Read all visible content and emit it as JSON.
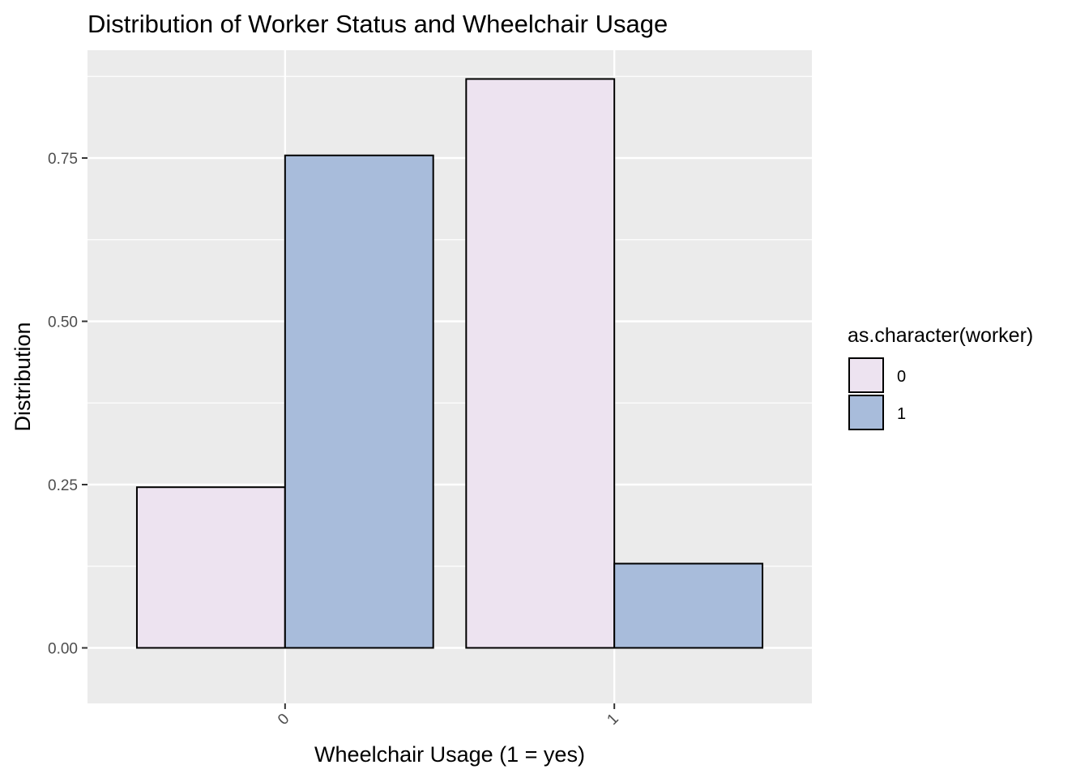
{
  "chart_data": {
    "type": "bar",
    "title": "Distribution of Worker Status and Wheelchair Usage",
    "xlabel": "Wheelchair Usage (1 = yes)",
    "ylabel": "Distribution",
    "categories": [
      "0",
      "1"
    ],
    "series": [
      {
        "name": "0",
        "values": [
          0.246,
          0.871
        ]
      },
      {
        "name": "1",
        "values": [
          0.754,
          0.129
        ]
      }
    ],
    "ylim": [
      -0.085,
      0.915
    ],
    "yticks": [
      0.0,
      0.25,
      0.5,
      0.75
    ],
    "ytick_labels": [
      "0.00",
      "0.25",
      "0.50",
      "0.75"
    ],
    "grid": true,
    "legend": {
      "title": "as.character(worker)",
      "placement": "right",
      "entries": [
        "0",
        "1"
      ]
    },
    "colors": {
      "panel_bg": "#ebebeb",
      "grid": "#ffffff",
      "bar_outline": "#000000",
      "series": [
        "#ede3f0",
        "#a8bcdb"
      ]
    }
  }
}
